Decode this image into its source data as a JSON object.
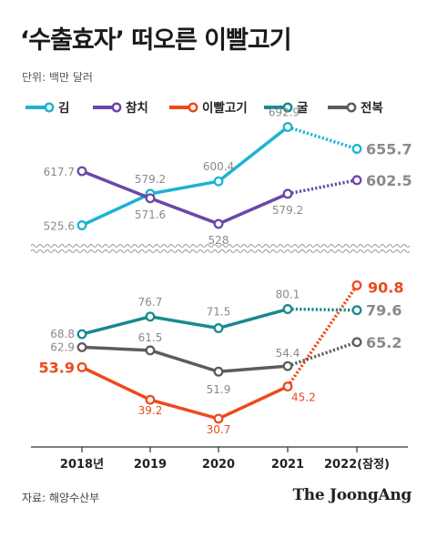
{
  "title": "‘수출효자’ 떠오른 이빨고기",
  "unit_label": "단위: 백만 달러",
  "source": "자료: 해양수산부",
  "brand": "The JoongAng",
  "colors": {
    "김": "#1bb3d3",
    "참치": "#6a47a8",
    "이빨고기": "#ec4a1c",
    "굴": "#178a8f",
    "전복": "#5c5c5c",
    "label_gray": "#8a8a8a",
    "axis": "#333333",
    "break": "#9a9a9a"
  },
  "chart_data": {
    "type": "line",
    "categories": [
      "2018년",
      "2019",
      "2020",
      "2021",
      "2022(잠정)"
    ],
    "axis_break": true,
    "series": [
      {
        "name": "김",
        "values": [
          525.6,
          579.2,
          600.4,
          692.9,
          655.7
        ],
        "labels": [
          "525.6",
          "579.2",
          "600.4",
          "692.9",
          "655.7"
        ],
        "last_dotted": true
      },
      {
        "name": "참치",
        "values": [
          617.7,
          571.6,
          528,
          579.2,
          602.5
        ],
        "labels": [
          "617.7",
          "571.6",
          "528",
          "579.2",
          "602.5"
        ],
        "last_dotted": true
      },
      {
        "name": "이빨고기",
        "values": [
          53.9,
          39.2,
          30.7,
          45.2,
          90.8
        ],
        "labels": [
          "53.9",
          "39.2",
          "30.7",
          "45.2",
          "90.8"
        ],
        "last_dotted": true
      },
      {
        "name": "굴",
        "values": [
          68.8,
          76.7,
          71.5,
          80.1,
          79.6
        ],
        "labels": [
          "68.8",
          "76.7",
          "71.5",
          "80.1",
          "79.6"
        ],
        "last_dotted": true
      },
      {
        "name": "전복",
        "values": [
          62.9,
          61.5,
          51.9,
          54.4,
          65.2
        ],
        "labels": [
          "62.9",
          "61.5",
          "51.9",
          "54.4",
          "65.2"
        ],
        "last_dotted": true
      }
    ]
  }
}
